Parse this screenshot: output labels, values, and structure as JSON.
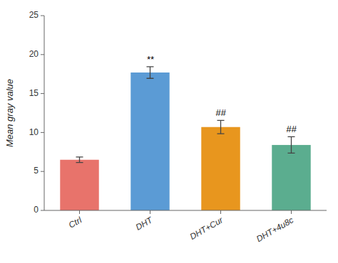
{
  "chart_data": {
    "type": "bar",
    "categories": [
      "Ctrl",
      "DHT",
      "DHT+Cur",
      "DHT+4u8c"
    ],
    "values": [
      6.5,
      17.7,
      10.7,
      8.4
    ],
    "errors": [
      0.35,
      0.75,
      0.85,
      1.05
    ],
    "colors": [
      "#E8736B",
      "#5B9BD5",
      "#E8961E",
      "#5BAD8F"
    ],
    "annotations": [
      null,
      "**",
      "##",
      "##"
    ],
    "y_label": "Mean gray value",
    "ylim": [
      0,
      25
    ],
    "yticks": [
      0,
      5,
      10,
      15,
      20,
      25
    ],
    "grid": false
  }
}
